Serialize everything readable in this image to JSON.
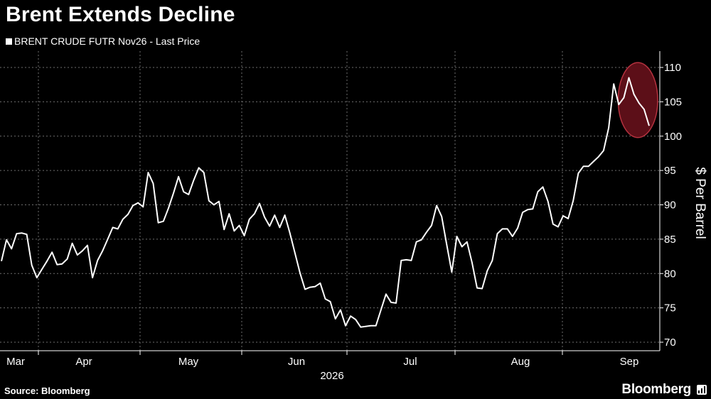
{
  "header": {
    "title": "Brent Extends Decline",
    "legend_label": "BRENT CRUDE FUTR Nov26 - Last Price"
  },
  "footer": {
    "source": "Source: Bloomberg",
    "brand": "Bloomberg"
  },
  "chart_data": {
    "type": "line",
    "title": "Brent Extends Decline",
    "ylabel": "$ Per Barrel",
    "xlabel": "2026",
    "ylim": [
      68.5,
      112.5
    ],
    "yticks": [
      70,
      75,
      80,
      85,
      90,
      95,
      100,
      105,
      110
    ],
    "xticks": [
      "Mar",
      "Apr",
      "May",
      "Jun",
      "Jul",
      "Aug",
      "Sep"
    ],
    "grid": true,
    "legend_position": "top-left",
    "colors": {
      "line": "#ffffff",
      "grid": "#6e6e6e",
      "highlight_fill": "#5c0f18",
      "highlight_stroke": "#b5323f"
    },
    "series": [
      {
        "name": "BRENT CRUDE FUTR Nov26 - Last Price",
        "values": [
          81.8,
          84.9,
          83.6,
          85.8,
          85.9,
          85.7,
          81.2,
          79.4,
          80.6,
          81.8,
          83.1,
          81.3,
          81.4,
          82.1,
          84.4,
          82.7,
          83.3,
          84.1,
          79.4,
          81.9,
          83.3,
          85.0,
          86.7,
          86.5,
          87.9,
          88.6,
          89.9,
          90.3,
          89.7,
          94.7,
          93.1,
          87.4,
          87.6,
          89.5,
          91.7,
          94.1,
          91.9,
          91.5,
          93.6,
          95.4,
          94.7,
          90.6,
          90.0,
          90.5,
          86.4,
          88.7,
          86.2,
          87.0,
          85.5,
          87.9,
          88.7,
          90.2,
          88.2,
          86.9,
          88.5,
          86.7,
          88.5,
          85.9,
          83.0,
          80.1,
          77.7,
          78.0,
          78.1,
          78.6,
          76.3,
          75.9,
          73.4,
          74.7,
          72.4,
          73.8,
          73.3,
          72.2,
          72.3,
          72.4,
          72.4,
          74.7,
          77.0,
          75.8,
          75.7,
          81.9,
          82.0,
          81.9,
          84.6,
          84.9,
          86.0,
          87.0,
          89.9,
          88.3,
          84.2,
          80.2,
          85.4,
          83.9,
          84.6,
          81.6,
          77.9,
          77.8,
          80.4,
          81.9,
          85.8,
          86.5,
          86.5,
          85.4,
          86.6,
          88.9,
          89.3,
          89.4,
          91.9,
          92.6,
          90.5,
          87.2,
          86.8,
          88.4,
          88.0,
          90.6,
          94.6,
          95.6,
          95.6,
          96.3,
          97.0,
          97.9,
          101.2,
          107.6,
          104.6,
          105.6,
          108.5,
          106.1,
          104.8,
          103.9,
          101.5
        ]
      }
    ],
    "annotations": [
      {
        "type": "ellipse-highlight",
        "x_index_range": [
          123,
          128
        ],
        "y_range": [
          100.0,
          110.5
        ]
      }
    ]
  }
}
